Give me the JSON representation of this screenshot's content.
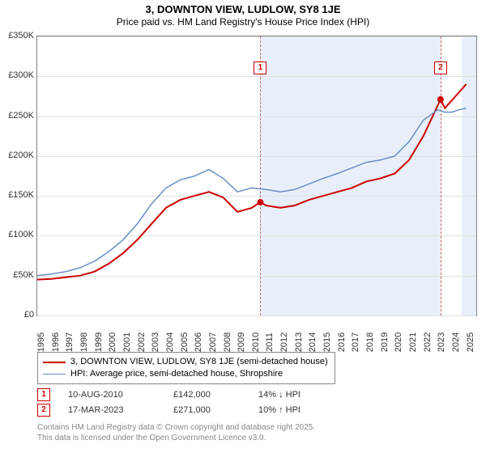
{
  "title": {
    "main": "3, DOWNTON VIEW, LUDLOW, SY8 1JE",
    "sub": "Price paid vs. HM Land Registry's House Price Index (HPI)"
  },
  "chart": {
    "type": "line",
    "background_color": "#ffffff",
    "grid_color": "#e0e0e0",
    "border_color": "#808080",
    "shade_color": "#e8effa",
    "x_years": [
      1995,
      1996,
      1997,
      1998,
      1999,
      2000,
      2001,
      2002,
      2003,
      2004,
      2005,
      2006,
      2007,
      2008,
      2009,
      2010,
      2011,
      2012,
      2013,
      2014,
      2015,
      2016,
      2017,
      2018,
      2019,
      2020,
      2021,
      2022,
      2023,
      2024,
      2025
    ],
    "x_range": [
      1995,
      2025.7
    ],
    "y_ticks": [
      0,
      50,
      100,
      150,
      200,
      250,
      300,
      350
    ],
    "y_tick_labels": [
      "£0",
      "£50K",
      "£100K",
      "£150K",
      "£200K",
      "£250K",
      "£300K",
      "£350K"
    ],
    "y_range": [
      0,
      350
    ],
    "shade_ranges": [
      [
        2010.6,
        2023.2
      ],
      [
        2024.7,
        2025.7
      ]
    ],
    "series": [
      {
        "name": "price_paid",
        "color": "#cc0000",
        "width": 2,
        "points": [
          [
            1995,
            45
          ],
          [
            1996,
            46
          ],
          [
            1997,
            48
          ],
          [
            1998,
            50
          ],
          [
            1999,
            55
          ],
          [
            2000,
            65
          ],
          [
            2001,
            78
          ],
          [
            2002,
            95
          ],
          [
            2003,
            115
          ],
          [
            2004,
            135
          ],
          [
            2005,
            145
          ],
          [
            2006,
            150
          ],
          [
            2007,
            155
          ],
          [
            2008,
            148
          ],
          [
            2009,
            130
          ],
          [
            2010,
            135
          ],
          [
            2010.6,
            142
          ],
          [
            2011,
            138
          ],
          [
            2012,
            135
          ],
          [
            2013,
            138
          ],
          [
            2014,
            145
          ],
          [
            2015,
            150
          ],
          [
            2016,
            155
          ],
          [
            2017,
            160
          ],
          [
            2018,
            168
          ],
          [
            2019,
            172
          ],
          [
            2020,
            178
          ],
          [
            2021,
            195
          ],
          [
            2022,
            225
          ],
          [
            2023.2,
            271
          ],
          [
            2023.5,
            260
          ],
          [
            2024,
            270
          ],
          [
            2024.5,
            280
          ],
          [
            2025,
            290
          ]
        ]
      },
      {
        "name": "hpi",
        "color": "#6a8fc4",
        "width": 1.5,
        "points": [
          [
            1995,
            50
          ],
          [
            1996,
            52
          ],
          [
            1997,
            55
          ],
          [
            1998,
            60
          ],
          [
            1999,
            68
          ],
          [
            2000,
            80
          ],
          [
            2001,
            95
          ],
          [
            2002,
            115
          ],
          [
            2003,
            140
          ],
          [
            2004,
            160
          ],
          [
            2005,
            170
          ],
          [
            2006,
            175
          ],
          [
            2007,
            183
          ],
          [
            2008,
            172
          ],
          [
            2009,
            155
          ],
          [
            2010,
            160
          ],
          [
            2011,
            158
          ],
          [
            2012,
            155
          ],
          [
            2013,
            158
          ],
          [
            2014,
            165
          ],
          [
            2015,
            172
          ],
          [
            2016,
            178
          ],
          [
            2017,
            185
          ],
          [
            2018,
            192
          ],
          [
            2019,
            195
          ],
          [
            2020,
            200
          ],
          [
            2021,
            218
          ],
          [
            2022,
            245
          ],
          [
            2023,
            258
          ],
          [
            2023.5,
            255
          ],
          [
            2024,
            255
          ],
          [
            2024.5,
            258
          ],
          [
            2025,
            260
          ]
        ]
      }
    ],
    "markers": [
      {
        "n": "1",
        "x": 2010.6,
        "y": 142,
        "label_y": 310
      },
      {
        "n": "2",
        "x": 2023.2,
        "y": 271,
        "label_y": 310
      }
    ]
  },
  "legend": {
    "items": [
      {
        "color": "#cc0000",
        "width": 2,
        "label": "3, DOWNTON VIEW, LUDLOW, SY8 1JE (semi-detached house)"
      },
      {
        "color": "#6a8fc4",
        "width": 1.5,
        "label": "HPI: Average price, semi-detached house, Shropshire"
      }
    ]
  },
  "sales": [
    {
      "n": "1",
      "date": "10-AUG-2010",
      "price": "£142,000",
      "delta": "14% ↓ HPI"
    },
    {
      "n": "2",
      "date": "17-MAR-2023",
      "price": "£271,000",
      "delta": "10% ↑ HPI"
    }
  ],
  "footer": {
    "line1": "Contains HM Land Registry data © Crown copyright and database right 2025.",
    "line2": "This data is licensed under the Open Government Licence v3.0."
  }
}
